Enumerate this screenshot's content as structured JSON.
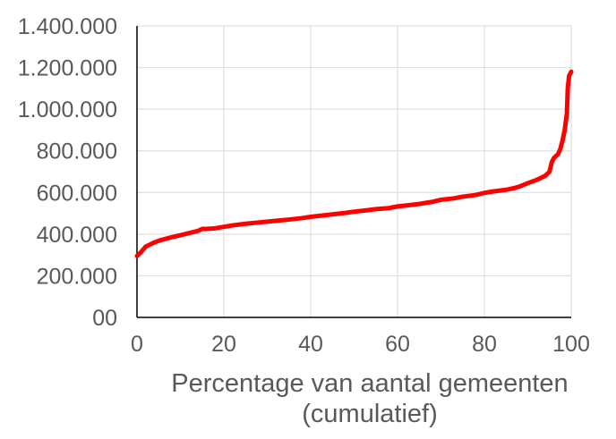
{
  "chart_data": {
    "type": "line",
    "title": "",
    "xlabel": "Percentage van aantal gemeenten (cumulatief)",
    "xlabel_lines": [
      "Percentage van aantal gemeenten",
      "(cumulatief)"
    ],
    "ylabel": "",
    "xlim": [
      0,
      100
    ],
    "ylim": [
      0,
      1400000
    ],
    "x_ticks": [
      0,
      20,
      40,
      60,
      80,
      100
    ],
    "x_tick_labels": [
      "0",
      "20",
      "40",
      "60",
      "80",
      "100"
    ],
    "y_ticks": [
      0,
      200000,
      400000,
      600000,
      800000,
      1000000,
      1200000,
      1400000
    ],
    "y_tick_labels": [
      "00",
      "200.000",
      "400.000",
      "600.000",
      "800.000",
      "1.000.000",
      "1.200.000",
      "1.400.000"
    ],
    "grid": true,
    "legend": "none",
    "colors": {
      "line": "#ff0000",
      "grid": "#d9d9d9",
      "axis": "#000000",
      "text": "#595959"
    },
    "series": [
      {
        "x": [
          0,
          0.5,
          1,
          2,
          3,
          4,
          5,
          6,
          8,
          10,
          12,
          14,
          15,
          16,
          18,
          20,
          22,
          25,
          28,
          30,
          33,
          35,
          38,
          40,
          43,
          45,
          48,
          50,
          53,
          55,
          58,
          60,
          63,
          65,
          68,
          70,
          73,
          75,
          78,
          80,
          82,
          85,
          87,
          88,
          90,
          92,
          93,
          94,
          95,
          95.5,
          96,
          97,
          97.5,
          98,
          98.5,
          99,
          99.2,
          99.5,
          100
        ],
        "values": [
          295000,
          305000,
          315000,
          340000,
          350000,
          360000,
          368000,
          374000,
          385000,
          395000,
          405000,
          415000,
          425000,
          425000,
          428000,
          435000,
          442000,
          450000,
          456000,
          460000,
          466000,
          470000,
          477000,
          483000,
          490000,
          495000,
          502000,
          508000,
          515000,
          520000,
          525000,
          533000,
          540000,
          545000,
          555000,
          565000,
          572000,
          580000,
          588000,
          598000,
          605000,
          613000,
          622000,
          628000,
          645000,
          660000,
          670000,
          680000,
          700000,
          745000,
          765000,
          785000,
          810000,
          850000,
          900000,
          980000,
          1100000,
          1160000,
          1180000
        ]
      }
    ]
  }
}
